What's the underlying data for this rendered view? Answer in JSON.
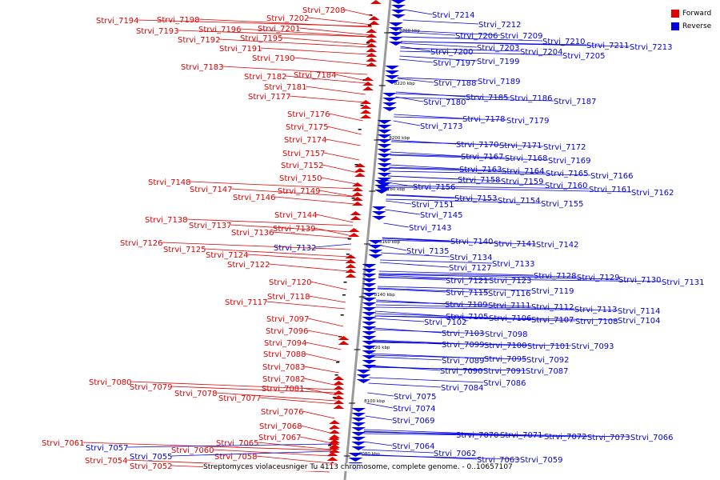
{
  "legend": {
    "forward": {
      "label": "Forward",
      "color": "#e00000"
    },
    "reverse": {
      "label": "Reverse",
      "color": "#0000e0"
    }
  },
  "caption": "Streptomyces violaceusniger Tu 4113 chromosome, complete genome. - 0..10657107",
  "colors": {
    "forward": "#e00000",
    "reverse": "#0000e0",
    "axis": "#9a9a9a"
  },
  "ticks": [
    {
      "label": "8200 kbp",
      "kbp": 8200
    },
    {
      "label": "8220 kbp",
      "kbp": 8220
    },
    {
      "label": "8200 kbp",
      "kbp": 8200
    },
    {
      "label": "8180 kbp",
      "kbp": 8180
    },
    {
      "label": "8160 kbp",
      "kbp": 8160
    },
    {
      "label": "8140 kbp",
      "kbp": 8140
    },
    {
      "label": "8120 kbp",
      "kbp": 8120
    },
    {
      "label": "8100 kbp",
      "kbp": 8100
    },
    {
      "label": "8080 kbp",
      "kbp": 8080
    }
  ],
  "forward_genes": [
    "Strvi_7208",
    "Strvi_7202",
    "Strvi_7198",
    "Strvi_7194",
    "Strvi_7201",
    "Strvi_7196",
    "Strvi_7193",
    "Strvi_7195",
    "Strvi_7192",
    "Strvi_7191",
    "Strvi_7190",
    "Strvi_7183",
    "Strvi_7184",
    "Strvi_7182",
    "Strvi_7181",
    "Strvi_7177",
    "Strvi_7176",
    "Strvi_7175",
    "Strvi_7174",
    "Strvi_7157",
    "Strvi_7152",
    "Strvi_7150",
    "Strvi_7148",
    "Strvi_7147",
    "Strvi_7149",
    "Strvi_7146",
    "Strvi_7144",
    "Strvi_7138",
    "Strvi_7137",
    "Strvi_7139",
    "Strvi_7136",
    "Strvi_7126",
    "Strvi_7125",
    "Strvi_7124",
    "Strvi_7122",
    "Strvi_7120",
    "Strvi_7118",
    "Strvi_7117",
    "Strvi_7097",
    "Strvi_7096",
    "Strvi_7094",
    "Strvi_7088",
    "Strvi_7083",
    "Strvi_7082",
    "Strvi_7080",
    "Strvi_7079",
    "Strvi_7081",
    "Strvi_7078",
    "Strvi_7077",
    "Strvi_7076",
    "Strvi_7068",
    "Strvi_7067",
    "Strvi_7065",
    "Strvi_7061",
    "Strvi_7060",
    "Strvi_7058",
    "Strvi_7054",
    "Strvi_7052"
  ],
  "reverse_genes": [
    "Strvi_7214",
    "Strvi_7212",
    "Strvi_7206",
    "Strvi_7209",
    "Strvi_7210",
    "Strvi_7211",
    "Strvi_7213",
    "Strvi_7203",
    "Strvi_7204",
    "Strvi_7200",
    "Strvi_7205",
    "Strvi_7197",
    "Strvi_7199",
    "Strvi_7188",
    "Strvi_7189",
    "Strvi_7185",
    "Strvi_7186",
    "Strvi_7187",
    "Strvi_7180",
    "Strvi_7178",
    "Strvi_7179",
    "Strvi_7173",
    "Strvi_7170",
    "Strvi_7171",
    "Strvi_7172",
    "Strvi_7167",
    "Strvi_7168",
    "Strvi_7169",
    "Strvi_7163",
    "Strvi_7164",
    "Strvi_7165",
    "Strvi_7166",
    "Strvi_7158",
    "Strvi_7159",
    "Strvi_7160",
    "Strvi_7161",
    "Strvi_7162",
    "Strvi_7156",
    "Strvi_7153",
    "Strvi_7154",
    "Strvi_7155",
    "Strvi_7151",
    "Strvi_7145",
    "Strvi_7143",
    "Strvi_7140",
    "Strvi_7141",
    "Strvi_7142",
    "Strvi_7132",
    "Strvi_7135",
    "Strvi_7134",
    "Strvi_7133",
    "Strvi_7127",
    "Strvi_7128",
    "Strvi_7129",
    "Strvi_7130",
    "Strvi_7131",
    "Strvi_7121",
    "Strvi_7123",
    "Strvi_7119",
    "Strvi_7115",
    "Strvi_7116",
    "Strvi_7109",
    "Strvi_7111",
    "Strvi_7112",
    "Strvi_7113",
    "Strvi_7114",
    "Strvi_7105",
    "Strvi_7106",
    "Strvi_7107",
    "Strvi_7108",
    "Strvi_7104",
    "Strvi_7102",
    "Strvi_7103",
    "Strvi_7098",
    "Strvi_7099",
    "Strvi_7100",
    "Strvi_7101",
    "Strvi_7093",
    "Strvi_7095",
    "Strvi_7092",
    "Strvi_7089",
    "Strvi_7090",
    "Strvi_7091",
    "Strvi_7087",
    "Strvi_7086",
    "Strvi_7084",
    "Strvi_7075",
    "Strvi_7074",
    "Strvi_7069",
    "Strvi_7070",
    "Strvi_7071",
    "Strvi_7072",
    "Strvi_7073",
    "Strvi_7066",
    "Strvi_7064",
    "Strvi_7062",
    "Strvi_7063",
    "Strvi_7059",
    "Strvi_7057",
    "Strvi_7055"
  ]
}
